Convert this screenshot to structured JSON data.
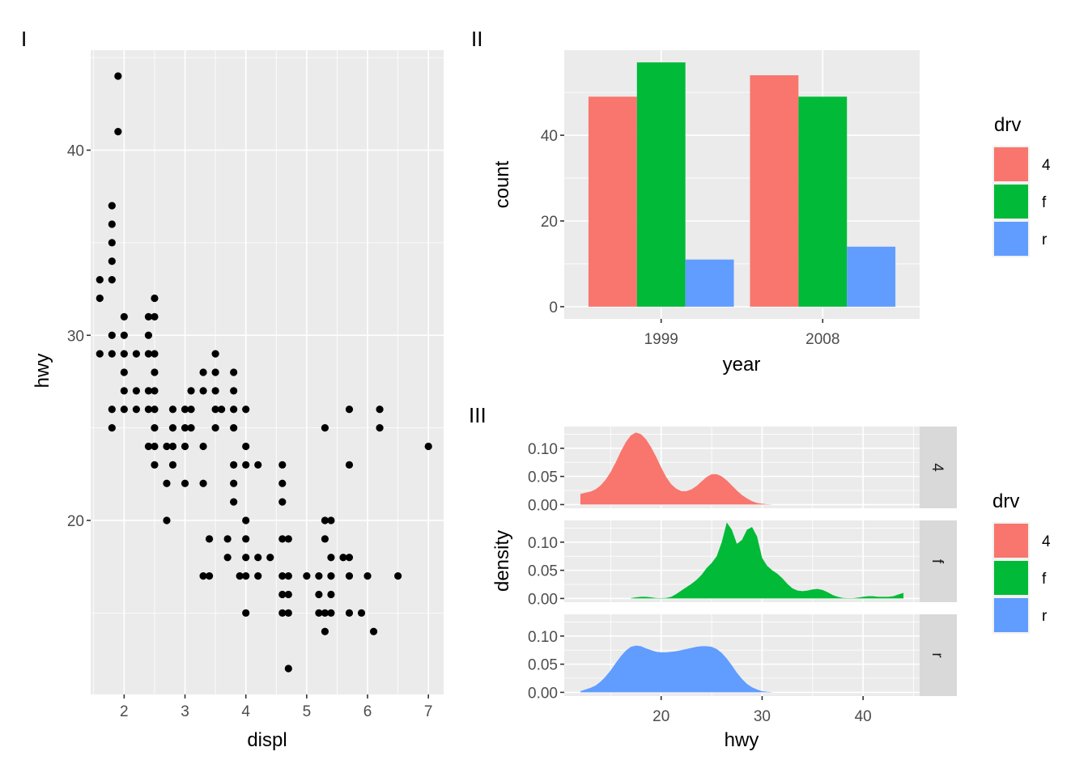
{
  "colors": {
    "panel_bg": "#EBEBEB",
    "grid": "#FFFFFF",
    "strip_bg": "#D9D9D9",
    "tick_text": "#4D4D4D",
    "tick_mark": "#333333",
    "point": "#000000",
    "drv_4": "#F8766D",
    "drv_f": "#00BA38",
    "drv_r": "#619CFF"
  },
  "chart_data": [
    {
      "tag": "I",
      "type": "scatter",
      "title": "",
      "xlabel": "displ",
      "ylabel": "hwy",
      "xlim": [
        1.45,
        7.25
      ],
      "ylim": [
        10.6,
        45.4
      ],
      "xticks": [
        2,
        3,
        4,
        5,
        6,
        7
      ],
      "xtick_labels": [
        "2",
        "3",
        "4",
        "5",
        "6",
        "7"
      ],
      "yticks": [
        20,
        30,
        40
      ],
      "ytick_labels": [
        "20",
        "30",
        "40"
      ],
      "grid": true,
      "points": [
        [
          1.9,
          44
        ],
        [
          1.9,
          41
        ],
        [
          1.8,
          37
        ],
        [
          1.8,
          36
        ],
        [
          1.8,
          35
        ],
        [
          1.8,
          34
        ],
        [
          1.6,
          33
        ],
        [
          1.8,
          33
        ],
        [
          1.6,
          32
        ],
        [
          2.5,
          32
        ],
        [
          2.0,
          31
        ],
        [
          2.4,
          31
        ],
        [
          2.5,
          31
        ],
        [
          1.8,
          30
        ],
        [
          2.0,
          30
        ],
        [
          2.4,
          30
        ],
        [
          1.6,
          29
        ],
        [
          1.8,
          29
        ],
        [
          2.0,
          29
        ],
        [
          2.2,
          29
        ],
        [
          2.4,
          29
        ],
        [
          2.5,
          29
        ],
        [
          3.5,
          29
        ],
        [
          2.0,
          28
        ],
        [
          2.5,
          28
        ],
        [
          3.3,
          28
        ],
        [
          3.5,
          28
        ],
        [
          3.8,
          28
        ],
        [
          2.0,
          27
        ],
        [
          2.2,
          27
        ],
        [
          2.4,
          27
        ],
        [
          2.5,
          27
        ],
        [
          3.1,
          27
        ],
        [
          3.3,
          27
        ],
        [
          3.5,
          27
        ],
        [
          3.8,
          27
        ],
        [
          1.8,
          26
        ],
        [
          2.0,
          26
        ],
        [
          2.2,
          26
        ],
        [
          2.4,
          26
        ],
        [
          2.5,
          26
        ],
        [
          2.8,
          26
        ],
        [
          3.0,
          26
        ],
        [
          3.1,
          26
        ],
        [
          3.5,
          26
        ],
        [
          3.6,
          26
        ],
        [
          3.8,
          26
        ],
        [
          4.0,
          26
        ],
        [
          5.7,
          26
        ],
        [
          6.2,
          26
        ],
        [
          1.8,
          25
        ],
        [
          2.5,
          25
        ],
        [
          2.8,
          25
        ],
        [
          3.0,
          25
        ],
        [
          3.1,
          25
        ],
        [
          3.5,
          25
        ],
        [
          3.8,
          25
        ],
        [
          5.3,
          25
        ],
        [
          6.2,
          25
        ],
        [
          2.4,
          24
        ],
        [
          2.5,
          24
        ],
        [
          2.7,
          24
        ],
        [
          2.8,
          24
        ],
        [
          3.0,
          24
        ],
        [
          3.3,
          24
        ],
        [
          4.0,
          24
        ],
        [
          7.0,
          24
        ],
        [
          2.5,
          23
        ],
        [
          2.8,
          23
        ],
        [
          3.8,
          23
        ],
        [
          4.0,
          23
        ],
        [
          4.2,
          23
        ],
        [
          4.6,
          23
        ],
        [
          5.7,
          23
        ],
        [
          2.7,
          22
        ],
        [
          3.0,
          22
        ],
        [
          3.3,
          22
        ],
        [
          3.8,
          22
        ],
        [
          4.6,
          22
        ],
        [
          3.8,
          21
        ],
        [
          4.6,
          21
        ],
        [
          2.7,
          20
        ],
        [
          4.0,
          20
        ],
        [
          5.3,
          20
        ],
        [
          5.4,
          20
        ],
        [
          3.4,
          19
        ],
        [
          3.7,
          19
        ],
        [
          4.0,
          19
        ],
        [
          4.6,
          19
        ],
        [
          4.7,
          19
        ],
        [
          5.3,
          19
        ],
        [
          3.7,
          18
        ],
        [
          4.0,
          18
        ],
        [
          4.2,
          18
        ],
        [
          4.4,
          18
        ],
        [
          5.4,
          18
        ],
        [
          5.6,
          18
        ],
        [
          5.7,
          18
        ],
        [
          3.3,
          17
        ],
        [
          3.4,
          17
        ],
        [
          3.9,
          17
        ],
        [
          4.0,
          17
        ],
        [
          4.2,
          17
        ],
        [
          4.6,
          17
        ],
        [
          4.7,
          17
        ],
        [
          5.0,
          17
        ],
        [
          5.2,
          17
        ],
        [
          5.4,
          17
        ],
        [
          5.7,
          17
        ],
        [
          6.0,
          17
        ],
        [
          6.5,
          17
        ],
        [
          4.6,
          16
        ],
        [
          4.7,
          16
        ],
        [
          5.2,
          16
        ],
        [
          5.4,
          16
        ],
        [
          4.0,
          15
        ],
        [
          4.6,
          15
        ],
        [
          4.7,
          15
        ],
        [
          5.2,
          15
        ],
        [
          5.3,
          15
        ],
        [
          5.4,
          15
        ],
        [
          5.7,
          15
        ],
        [
          5.9,
          15
        ],
        [
          5.3,
          14
        ],
        [
          6.1,
          14
        ],
        [
          4.7,
          12
        ]
      ]
    },
    {
      "tag": "II",
      "type": "bar",
      "title": "",
      "xlabel": "year",
      "ylabel": "count",
      "categories": [
        "1999",
        "2008"
      ],
      "series": [
        {
          "name": "4",
          "values": [
            49,
            54
          ]
        },
        {
          "name": "f",
          "values": [
            57,
            49
          ]
        },
        {
          "name": "r",
          "values": [
            11,
            14
          ]
        }
      ],
      "ylim": [
        -2.85,
        59.85
      ],
      "yticks": [
        0,
        20,
        40
      ],
      "ytick_labels": [
        "0",
        "20",
        "40"
      ],
      "grid": true,
      "legend": {
        "title": "drv",
        "entries": [
          "4",
          "f",
          "r"
        ],
        "position": "right"
      }
    },
    {
      "tag": "III",
      "type": "area",
      "title": "",
      "xlabel": "hwy",
      "ylabel": "density",
      "xlim": [
        10.4,
        45.6
      ],
      "ylim": [
        -0.0066,
        0.1386
      ],
      "xticks": [
        20,
        30,
        40
      ],
      "xtick_labels": [
        "20",
        "30",
        "40"
      ],
      "yticks": [
        0,
        0.05,
        0.1
      ],
      "ytick_labels": [
        "0.00",
        "0.05",
        "0.10"
      ],
      "grid": true,
      "facets": [
        {
          "strip": "4",
          "series": "4",
          "x": [
            12,
            12.5,
            13,
            13.5,
            14,
            14.5,
            15,
            15.5,
            16,
            16.5,
            17,
            17.5,
            18,
            18.5,
            19,
            19.5,
            20,
            20.5,
            21,
            21.5,
            22,
            22.5,
            23,
            23.5,
            24,
            24.5,
            25,
            25.5,
            26,
            26.5,
            27,
            27.5,
            28,
            28.5,
            29,
            29.5,
            30,
            30.5,
            31
          ],
          "y": [
            0.019,
            0.021,
            0.023,
            0.027,
            0.034,
            0.044,
            0.058,
            0.075,
            0.094,
            0.111,
            0.123,
            0.128,
            0.125,
            0.116,
            0.102,
            0.085,
            0.066,
            0.049,
            0.036,
            0.028,
            0.024,
            0.024,
            0.027,
            0.033,
            0.041,
            0.049,
            0.054,
            0.054,
            0.05,
            0.043,
            0.034,
            0.025,
            0.017,
            0.011,
            0.006,
            0.003,
            0.0015,
            0.0006,
            0.0002
          ]
        },
        {
          "strip": "f",
          "series": "f",
          "x": [
            17,
            17.5,
            18,
            18.5,
            19,
            19.5,
            20,
            20.5,
            21,
            21.5,
            22,
            22.5,
            23,
            23.5,
            24,
            24.5,
            25,
            25.5,
            26,
            26.5,
            27,
            27.5,
            28,
            28.5,
            29,
            29.5,
            30,
            30.5,
            31,
            31.5,
            32,
            32.5,
            33,
            33.5,
            34,
            34.5,
            35,
            35.5,
            36,
            36.5,
            37,
            37.5,
            38,
            38.5,
            39,
            39.5,
            40,
            40.5,
            41,
            41.5,
            42,
            42.5,
            43,
            43.5,
            44
          ],
          "y": [
            0.0005,
            0.002,
            0.003,
            0.003,
            0.002,
            0.0008,
            0.0006,
            0.001,
            0.003,
            0.008,
            0.014,
            0.02,
            0.026,
            0.033,
            0.042,
            0.054,
            0.063,
            0.075,
            0.1,
            0.135,
            0.122,
            0.097,
            0.104,
            0.122,
            0.127,
            0.11,
            0.072,
            0.058,
            0.05,
            0.044,
            0.036,
            0.026,
            0.018,
            0.014,
            0.013,
            0.014,
            0.016,
            0.017,
            0.015,
            0.011,
            0.006,
            0.003,
            0.001,
            0.0005,
            0.0006,
            0.0015,
            0.003,
            0.004,
            0.004,
            0.003,
            0.003,
            0.003,
            0.004,
            0.007,
            0.01
          ]
        },
        {
          "strip": "r",
          "series": "r",
          "x": [
            12,
            12.5,
            13,
            13.5,
            14,
            14.5,
            15,
            15.5,
            16,
            16.5,
            17,
            17.5,
            18,
            18.5,
            19,
            19.5,
            20,
            20.5,
            21,
            21.5,
            22,
            22.5,
            23,
            23.5,
            24,
            24.5,
            25,
            25.5,
            26,
            26.5,
            27,
            27.5,
            28,
            28.5,
            29,
            29.5,
            30,
            30.5,
            31
          ],
          "y": [
            0.002,
            0.005,
            0.008,
            0.012,
            0.019,
            0.028,
            0.039,
            0.052,
            0.064,
            0.074,
            0.081,
            0.083,
            0.082,
            0.078,
            0.075,
            0.072,
            0.071,
            0.071,
            0.072,
            0.073,
            0.075,
            0.077,
            0.079,
            0.081,
            0.082,
            0.082,
            0.081,
            0.077,
            0.07,
            0.06,
            0.048,
            0.035,
            0.024,
            0.015,
            0.009,
            0.005,
            0.002,
            0.001,
            0.0004
          ]
        }
      ],
      "legend": {
        "title": "drv",
        "entries": [
          "4",
          "f",
          "r"
        ],
        "position": "right"
      }
    }
  ]
}
